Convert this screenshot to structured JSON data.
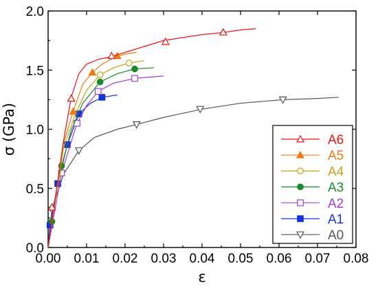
{
  "chart_data": {
    "type": "line",
    "xlabel": "ε",
    "ylabel": "σ (GPa)",
    "xlim": [
      0.0,
      0.08
    ],
    "ylim": [
      0.0,
      2.0
    ],
    "x_ticks": [
      "0.00",
      "0.01",
      "0.02",
      "0.03",
      "0.04",
      "0.05",
      "0.06",
      "0.07",
      "0.08"
    ],
    "y_ticks": [
      "0.0",
      "0.5",
      "1.0",
      "1.5",
      "2.0"
    ],
    "grid": false,
    "legend_position": "bottom-right",
    "series": [
      {
        "name": "A6",
        "color": "#ee1111",
        "marker": "triangle-up-open",
        "x": [
          0.0,
          0.002,
          0.004,
          0.006,
          0.008,
          0.01,
          0.013,
          0.016,
          0.02,
          0.025,
          0.03,
          0.04,
          0.046,
          0.05,
          0.054
        ],
        "y": [
          0.0,
          0.45,
          0.9,
          1.27,
          1.47,
          1.55,
          1.59,
          1.61,
          1.65,
          1.7,
          1.75,
          1.8,
          1.82,
          1.84,
          1.85
        ],
        "markers_x": [
          0.001,
          0.006,
          0.0165,
          0.0305,
          0.0455
        ],
        "markers_y": [
          0.34,
          1.26,
          1.62,
          1.74,
          1.82
        ]
      },
      {
        "name": "A5",
        "color": "#f07a10",
        "marker": "triangle-up-filled",
        "x": [
          0.0,
          0.002,
          0.004,
          0.0065,
          0.009,
          0.0115,
          0.014,
          0.018,
          0.021,
          0.023
        ],
        "y": [
          0.0,
          0.45,
          0.88,
          1.15,
          1.38,
          1.48,
          1.55,
          1.62,
          1.64,
          1.65
        ],
        "markers_x": [
          0.0065,
          0.0115,
          0.018
        ],
        "markers_y": [
          1.15,
          1.48,
          1.62
        ]
      },
      {
        "name": "A4",
        "color": "#c8a012",
        "marker": "circle-open",
        "x": [
          0.0,
          0.002,
          0.004,
          0.007,
          0.01,
          0.0135,
          0.017,
          0.021,
          0.025
        ],
        "y": [
          0.0,
          0.42,
          0.84,
          1.12,
          1.33,
          1.46,
          1.52,
          1.56,
          1.58
        ],
        "markers_x": [
          0.0135,
          0.021
        ],
        "markers_y": [
          1.46,
          1.56
        ]
      },
      {
        "name": "A3",
        "color": "#1a8a2a",
        "marker": "circle-filled",
        "x": [
          0.0,
          0.001,
          0.002,
          0.0035,
          0.006,
          0.009,
          0.0135,
          0.018,
          0.0225,
          0.0275
        ],
        "y": [
          0.0,
          0.22,
          0.45,
          0.69,
          0.99,
          1.22,
          1.4,
          1.47,
          1.51,
          1.52
        ],
        "markers_x": [
          0.001,
          0.0035,
          0.0135,
          0.0225
        ],
        "markers_y": [
          0.22,
          0.69,
          1.4,
          1.51
        ]
      },
      {
        "name": "A2",
        "color": "#a03ae0",
        "marker": "square-open",
        "x": [
          0.0,
          0.0035,
          0.0075,
          0.01,
          0.013,
          0.017,
          0.0225,
          0.026,
          0.03
        ],
        "y": [
          0.0,
          0.63,
          1.05,
          1.2,
          1.32,
          1.39,
          1.43,
          1.44,
          1.45
        ],
        "markers_x": [
          0.0035,
          0.0075,
          0.013,
          0.0225
        ],
        "markers_y": [
          0.63,
          1.05,
          1.32,
          1.43
        ]
      },
      {
        "name": "A1",
        "color": "#1133dd",
        "marker": "square-filled",
        "x": [
          0.0,
          0.0005,
          0.0025,
          0.005,
          0.008,
          0.011,
          0.014,
          0.018
        ],
        "y": [
          0.0,
          0.19,
          0.54,
          0.87,
          1.13,
          1.22,
          1.27,
          1.29
        ],
        "markers_x": [
          0.0005,
          0.0025,
          0.005,
          0.008,
          0.014
        ],
        "markers_y": [
          0.19,
          0.54,
          0.87,
          1.13,
          1.27
        ]
      },
      {
        "name": "A0",
        "color": "#555555",
        "marker": "triangle-down-open",
        "x": [
          0.0,
          0.001,
          0.004,
          0.008,
          0.012,
          0.018,
          0.023,
          0.03,
          0.04,
          0.05,
          0.061,
          0.07,
          0.0755
        ],
        "y": [
          0.0,
          0.32,
          0.62,
          0.82,
          0.93,
          1.0,
          1.04,
          1.1,
          1.17,
          1.22,
          1.25,
          1.26,
          1.27
        ],
        "markers_x": [
          0.001,
          0.008,
          0.023,
          0.0395,
          0.061
        ],
        "markers_y": [
          0.32,
          0.82,
          1.04,
          1.17,
          1.25
        ]
      }
    ]
  }
}
